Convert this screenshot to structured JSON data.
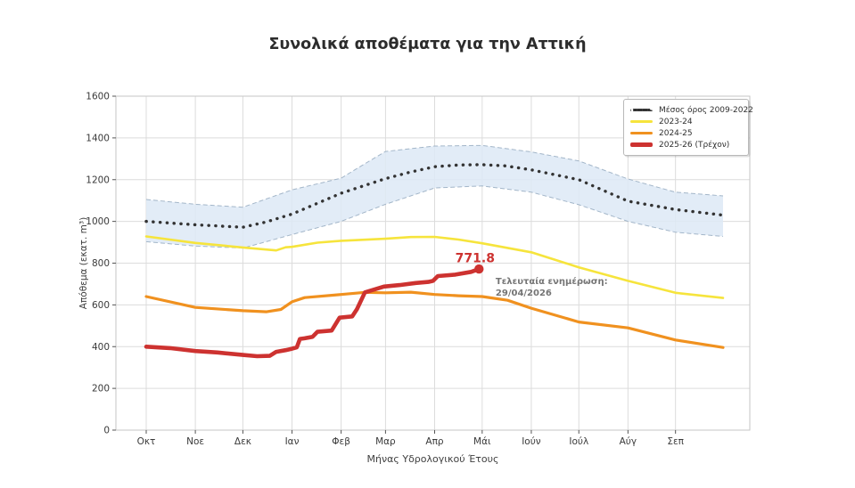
{
  "chart_data": {
    "type": "line",
    "title": "Συνολικά αποθέματα για την Αττική",
    "xlabel": "Μήνας Υδρολογικού Έτους",
    "ylabel": "Απόθεμα (εκατ. m³)",
    "ylim": [
      0,
      1600
    ],
    "yticks": [
      0,
      200,
      400,
      600,
      800,
      1000,
      1200,
      1400,
      1600
    ],
    "xticks": {
      "labels": [
        "Οκτ",
        "Νοε",
        "Δεκ",
        "Ιαν",
        "Φεβ",
        "Μαρ",
        "Απρ",
        "Μάι",
        "Ιούν",
        "Ιούλ",
        "Αύγ",
        "Σεπ"
      ],
      "days": [
        0,
        31,
        61,
        92,
        123,
        151,
        182,
        212,
        243,
        273,
        304,
        334
      ]
    },
    "x_domain_days": [
      0,
      364
    ],
    "grid": true,
    "legend_position": "top-right",
    "series": [
      {
        "name": "Μέσος όρος 2009-2022",
        "style": "dotted",
        "color": "#333333",
        "width": 3.4,
        "x": [
          0,
          31,
          61,
          76,
          92,
          123,
          151,
          167,
          182,
          197,
          212,
          227,
          243,
          273,
          304,
          334,
          364
        ],
        "values": [
          1000,
          984,
          972,
          998,
          1035,
          1135,
          1205,
          1237,
          1262,
          1270,
          1272,
          1266,
          1247,
          1200,
          1097,
          1057,
          1030
        ],
        "band": {
          "fill": "#dde9f6",
          "edge_color": "#a3b6c9",
          "upper": {
            "x": [
              0,
              31,
              61,
              92,
              123,
              137,
              151,
              182,
              212,
              243,
              273,
              304,
              334,
              364
            ],
            "values": [
              1105,
              1082,
              1068,
              1151,
              1207,
              1272,
              1335,
              1361,
              1364,
              1333,
              1290,
              1203,
              1140,
              1122
            ]
          },
          "lower": {
            "x": [
              0,
              31,
              61,
              92,
              123,
              151,
              182,
              212,
              243,
              273,
              304,
              334,
              364
            ],
            "values": [
              903,
              882,
              872,
              937,
              1000,
              1082,
              1160,
              1170,
              1140,
              1080,
              1000,
              948,
              928
            ]
          }
        }
      },
      {
        "name": "2023-24",
        "style": "solid",
        "color": "#f6e43c",
        "width": 2.6,
        "x": [
          0,
          31,
          61,
          82,
          88,
          92,
          108,
          123,
          151,
          167,
          182,
          197,
          212,
          243,
          273,
          304,
          334,
          364
        ],
        "values": [
          928,
          897,
          875,
          861,
          876,
          878,
          898,
          907,
          917,
          925,
          926,
          913,
          895,
          852,
          780,
          715,
          658,
          633
        ]
      },
      {
        "name": "2024-25",
        "style": "solid",
        "color": "#f0911f",
        "width": 3.2,
        "x": [
          0,
          31,
          61,
          76,
          85,
          92,
          100,
          123,
          138,
          151,
          167,
          182,
          197,
          212,
          228,
          243,
          273,
          304,
          334,
          364
        ],
        "values": [
          640,
          588,
          572,
          567,
          578,
          615,
          635,
          650,
          660,
          658,
          661,
          650,
          644,
          640,
          622,
          584,
          518,
          490,
          432,
          396
        ]
      },
      {
        "name": "2025-26 (Τρέχον)",
        "style": "solid",
        "color": "#cd3230",
        "width": 4.6,
        "endpoint_marker": true,
        "x": [
          0,
          15,
          31,
          45,
          61,
          70,
          78,
          82,
          88,
          92,
          95,
          97,
          100,
          105,
          108,
          117,
          122,
          130,
          133,
          138,
          150,
          160,
          170,
          178,
          181,
          184,
          195,
          205,
          210
        ],
        "values": [
          400,
          393,
          379,
          372,
          360,
          354,
          356,
          375,
          383,
          390,
          397,
          437,
          440,
          447,
          471,
          477,
          539,
          545,
          580,
          660,
          688,
          695,
          705,
          710,
          715,
          738,
          745,
          758,
          771.8
        ]
      }
    ],
    "annotations": {
      "current_value": {
        "text": "771.8",
        "x_day": 207.5,
        "value": 805,
        "color": "#cd3230"
      },
      "last_update": {
        "lines": [
          "Τελευταία ενημέρωση:",
          "29/04/2026"
        ],
        "x_day": 220.5,
        "value": 700,
        "color": "#757575"
      }
    }
  }
}
